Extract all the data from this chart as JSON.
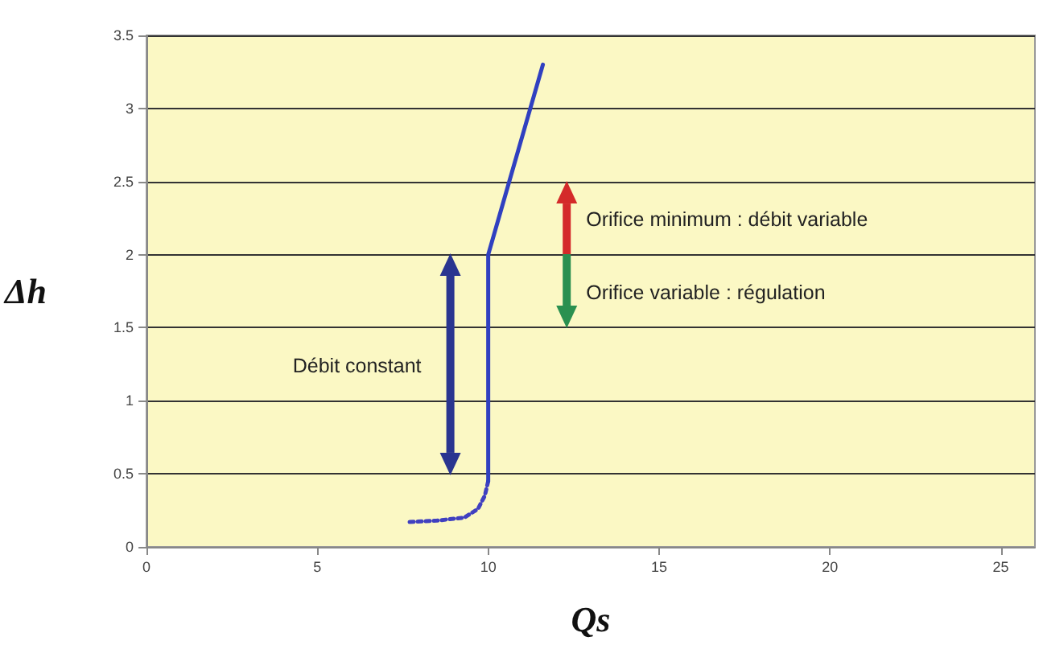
{
  "chart_data": {
    "type": "line",
    "xlabel": "Qs",
    "ylabel": "Δh",
    "series": [
      {
        "color": "#4040c0",
        "line_style": "dotted",
        "x": [
          7.7,
          8.5,
          9.3,
          9.7,
          9.9,
          10
        ],
        "values": [
          0.17,
          0.18,
          0.2,
          0.26,
          0.35,
          0.45
        ]
      },
      {
        "color": "#3040c0",
        "line_style": "solid",
        "x": [
          10,
          10,
          11.6
        ],
        "values": [
          0.45,
          2,
          3.3
        ]
      }
    ],
    "xlim": [
      0,
      26
    ],
    "xticks": [
      0,
      5,
      10,
      15,
      20,
      25
    ],
    "ylim": [
      0,
      3.5
    ],
    "yticks": [
      0,
      0.5,
      1,
      1.5,
      2,
      2.5,
      3,
      3.5
    ],
    "grid": "y",
    "marker": "none",
    "annotations": [
      "Débit constant",
      "Orifice minimum : débit variable",
      "Orifice variable : régulation"
    ]
  }
}
